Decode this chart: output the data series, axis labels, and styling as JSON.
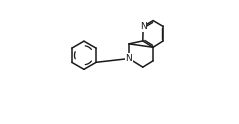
{
  "bg_color": "#ffffff",
  "line_color": "#1a1a1a",
  "lw": 1.1,
  "N_font_size": 6.5,
  "fig_width": 2.39,
  "fig_height": 1.24,
  "dpi": 100
}
